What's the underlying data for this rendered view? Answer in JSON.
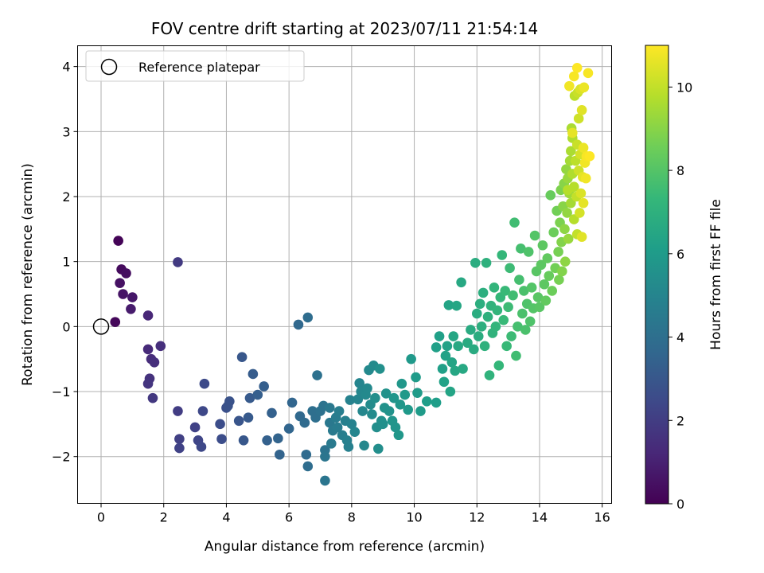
{
  "chart_data": {
    "type": "scatter",
    "title": "FOV centre drift starting at 2023/07/11 21:54:14",
    "xlabel": "Angular distance from reference (arcmin)",
    "ylabel": "Rotation from reference (arcmin)",
    "xlim": [
      -0.75,
      16.3
    ],
    "ylim": [
      -2.72,
      4.32
    ],
    "xticks": [
      0,
      2,
      4,
      6,
      8,
      10,
      12,
      14,
      16
    ],
    "yticks": [
      -2,
      -1,
      0,
      1,
      2,
      3,
      4
    ],
    "grid": true,
    "legend": {
      "placement": "upper-left",
      "entries": [
        "Reference platepar"
      ]
    },
    "reference_point": {
      "x": 0,
      "y": 0
    },
    "colorbar": {
      "label": "Hours from first FF file",
      "range": [
        0,
        11
      ],
      "ticks": [
        0,
        2,
        4,
        6,
        8,
        10
      ],
      "colormap": "viridis",
      "stops": [
        "#440154",
        "#482878",
        "#3e4989",
        "#31688e",
        "#26828e",
        "#1f9e89",
        "#35b779",
        "#6ece58",
        "#b5de2b",
        "#fde725"
      ]
    },
    "series": [
      {
        "points": [
          [
            0.55,
            1.32,
            0.1
          ],
          [
            0.45,
            0.07,
            0.2
          ],
          [
            0.65,
            0.88,
            0.3
          ],
          [
            0.8,
            0.82,
            0.4
          ],
          [
            0.6,
            0.67,
            0.5
          ],
          [
            0.7,
            0.5,
            0.6
          ],
          [
            1.0,
            0.45,
            0.7
          ],
          [
            0.95,
            0.27,
            0.8
          ],
          [
            1.5,
            0.17,
            1.2
          ],
          [
            1.5,
            -0.35,
            1.3
          ],
          [
            1.6,
            -0.5,
            1.4
          ],
          [
            1.7,
            -0.55,
            1.5
          ],
          [
            1.9,
            -0.3,
            1.5
          ],
          [
            1.55,
            -0.8,
            1.6
          ],
          [
            1.5,
            -0.88,
            1.7
          ],
          [
            1.65,
            -1.1,
            1.8
          ],
          [
            2.45,
            0.99,
            1.9
          ],
          [
            2.45,
            -1.3,
            2.0
          ],
          [
            2.5,
            -1.73,
            2.1
          ],
          [
            2.5,
            -1.87,
            2.2
          ],
          [
            3.0,
            -1.55,
            2.2
          ],
          [
            3.1,
            -1.75,
            2.3
          ],
          [
            3.2,
            -1.85,
            2.4
          ],
          [
            3.25,
            -1.3,
            2.4
          ],
          [
            3.3,
            -0.88,
            2.5
          ],
          [
            3.8,
            -1.5,
            2.6
          ],
          [
            3.85,
            -1.73,
            2.6
          ],
          [
            4.0,
            -1.25,
            2.7
          ],
          [
            4.1,
            -1.15,
            2.8
          ],
          [
            4.05,
            -1.22,
            2.8
          ],
          [
            4.4,
            -1.45,
            2.9
          ],
          [
            4.5,
            -0.47,
            3.0
          ],
          [
            4.55,
            -1.75,
            3.0
          ],
          [
            4.7,
            -1.4,
            3.1
          ],
          [
            4.75,
            -1.1,
            3.1
          ],
          [
            4.85,
            -0.73,
            3.2
          ],
          [
            5.0,
            -1.05,
            3.3
          ],
          [
            5.2,
            -0.92,
            3.3
          ],
          [
            5.3,
            -1.75,
            3.4
          ],
          [
            5.45,
            -1.33,
            3.4
          ],
          [
            5.65,
            -1.72,
            3.5
          ],
          [
            5.7,
            -1.97,
            3.5
          ],
          [
            6.0,
            -1.57,
            3.6
          ],
          [
            6.1,
            -1.17,
            3.6
          ],
          [
            6.3,
            0.03,
            3.7
          ],
          [
            6.35,
            -1.38,
            3.7
          ],
          [
            6.5,
            -1.48,
            3.8
          ],
          [
            6.55,
            -1.97,
            3.8
          ],
          [
            6.6,
            -2.15,
            3.9
          ],
          [
            6.6,
            0.14,
            3.9
          ],
          [
            6.75,
            -1.3,
            4.0
          ],
          [
            6.85,
            -1.4,
            4.0
          ],
          [
            6.9,
            -0.75,
            4.1
          ],
          [
            7.0,
            -1.3,
            4.1
          ],
          [
            7.1,
            -1.22,
            4.2
          ],
          [
            7.15,
            -1.9,
            4.2
          ],
          [
            7.15,
            -2.0,
            4.3
          ],
          [
            7.15,
            -2.37,
            4.3
          ],
          [
            7.3,
            -1.48,
            4.4
          ],
          [
            7.3,
            -1.25,
            4.4
          ],
          [
            7.35,
            -1.8,
            4.5
          ],
          [
            7.4,
            -1.6,
            4.5
          ],
          [
            7.5,
            -1.4,
            4.6
          ],
          [
            7.55,
            -1.55,
            4.6
          ],
          [
            7.6,
            -1.3,
            4.7
          ],
          [
            7.7,
            -1.67,
            4.7
          ],
          [
            7.8,
            -1.45,
            4.8
          ],
          [
            7.85,
            -1.75,
            4.8
          ],
          [
            7.9,
            -1.85,
            4.8
          ],
          [
            7.95,
            -1.13,
            4.9
          ],
          [
            8.0,
            -1.5,
            4.9
          ],
          [
            8.1,
            -1.62,
            5.0
          ],
          [
            8.2,
            -1.12,
            5.0
          ],
          [
            8.25,
            -0.87,
            5.0
          ],
          [
            8.3,
            -1.0,
            5.1
          ],
          [
            8.35,
            -1.3,
            5.1
          ],
          [
            8.4,
            -1.83,
            5.1
          ],
          [
            8.45,
            -1.05,
            5.2
          ],
          [
            8.5,
            -0.95,
            5.2
          ],
          [
            8.55,
            -0.67,
            5.2
          ],
          [
            8.6,
            -1.2,
            5.3
          ],
          [
            8.65,
            -1.35,
            5.3
          ],
          [
            8.7,
            -0.6,
            5.3
          ],
          [
            8.75,
            -1.1,
            5.4
          ],
          [
            8.8,
            -1.55,
            5.4
          ],
          [
            8.85,
            -1.88,
            5.4
          ],
          [
            8.9,
            -0.65,
            5.5
          ],
          [
            8.95,
            -1.45,
            5.5
          ],
          [
            9.0,
            -1.5,
            5.5
          ],
          [
            9.05,
            -1.25,
            5.6
          ],
          [
            9.1,
            -1.03,
            5.6
          ],
          [
            9.2,
            -1.3,
            5.6
          ],
          [
            9.3,
            -1.45,
            5.7
          ],
          [
            9.35,
            -1.1,
            5.7
          ],
          [
            9.4,
            -1.55,
            5.7
          ],
          [
            9.5,
            -1.67,
            5.8
          ],
          [
            9.55,
            -1.2,
            5.8
          ],
          [
            9.6,
            -0.88,
            5.8
          ],
          [
            9.7,
            -1.05,
            5.9
          ],
          [
            9.8,
            -1.28,
            5.9
          ],
          [
            9.9,
            -0.5,
            5.9
          ],
          [
            10.05,
            -0.78,
            6.0
          ],
          [
            10.1,
            -1.02,
            6.0
          ],
          [
            10.2,
            -1.3,
            6.0
          ],
          [
            10.4,
            -1.15,
            6.1
          ],
          [
            10.7,
            -1.17,
            6.1
          ],
          [
            10.7,
            -0.32,
            6.2
          ],
          [
            10.8,
            -0.15,
            6.2
          ],
          [
            10.9,
            -0.65,
            6.2
          ],
          [
            10.95,
            -0.85,
            6.3
          ],
          [
            11.0,
            -0.45,
            6.3
          ],
          [
            11.05,
            -0.3,
            6.3
          ],
          [
            11.1,
            0.33,
            6.4
          ],
          [
            11.15,
            -1.0,
            6.4
          ],
          [
            11.2,
            -0.55,
            6.4
          ],
          [
            11.25,
            -0.15,
            6.5
          ],
          [
            11.3,
            -0.68,
            6.5
          ],
          [
            11.35,
            0.32,
            6.5
          ],
          [
            11.4,
            -0.3,
            6.6
          ],
          [
            11.5,
            0.68,
            6.6
          ],
          [
            11.55,
            -0.65,
            6.6
          ],
          [
            11.7,
            -0.25,
            6.7
          ],
          [
            11.8,
            -0.05,
            6.7
          ],
          [
            11.9,
            -0.35,
            6.7
          ],
          [
            11.95,
            0.98,
            6.8
          ],
          [
            12.0,
            0.2,
            6.8
          ],
          [
            12.05,
            -0.15,
            6.8
          ],
          [
            12.1,
            0.35,
            6.9
          ],
          [
            12.15,
            0.0,
            6.9
          ],
          [
            12.2,
            0.52,
            6.9
          ],
          [
            12.25,
            -0.3,
            7.0
          ],
          [
            12.3,
            0.98,
            7.0
          ],
          [
            12.35,
            0.15,
            7.0
          ],
          [
            12.4,
            -0.75,
            7.1
          ],
          [
            12.45,
            0.32,
            7.1
          ],
          [
            12.5,
            -0.1,
            7.1
          ],
          [
            12.55,
            0.6,
            7.2
          ],
          [
            12.6,
            0.0,
            7.2
          ],
          [
            12.65,
            0.25,
            7.2
          ],
          [
            12.7,
            -0.6,
            7.3
          ],
          [
            12.75,
            0.45,
            7.3
          ],
          [
            12.8,
            1.1,
            7.3
          ],
          [
            12.85,
            0.1,
            7.4
          ],
          [
            12.9,
            0.55,
            7.4
          ],
          [
            12.95,
            -0.3,
            7.4
          ],
          [
            13.0,
            0.3,
            7.5
          ],
          [
            13.05,
            0.9,
            7.5
          ],
          [
            13.1,
            -0.15,
            7.5
          ],
          [
            13.15,
            0.48,
            7.6
          ],
          [
            13.2,
            1.6,
            7.6
          ],
          [
            13.25,
            -0.45,
            7.6
          ],
          [
            13.3,
            0.0,
            7.7
          ],
          [
            13.35,
            0.72,
            7.7
          ],
          [
            13.4,
            1.2,
            7.7
          ],
          [
            13.45,
            0.2,
            7.8
          ],
          [
            13.5,
            0.55,
            7.8
          ],
          [
            13.55,
            -0.05,
            7.8
          ],
          [
            13.6,
            0.35,
            7.9
          ],
          [
            13.65,
            1.15,
            7.9
          ],
          [
            13.7,
            0.08,
            7.9
          ],
          [
            13.75,
            0.6,
            8.0
          ],
          [
            13.8,
            0.28,
            8.0
          ],
          [
            13.85,
            1.4,
            8.0
          ],
          [
            13.9,
            0.85,
            8.1
          ],
          [
            13.95,
            0.45,
            8.1
          ],
          [
            14.0,
            0.3,
            8.1
          ],
          [
            14.05,
            0.95,
            8.2
          ],
          [
            14.1,
            1.25,
            8.2
          ],
          [
            14.15,
            0.65,
            8.2
          ],
          [
            14.2,
            0.4,
            8.3
          ],
          [
            14.25,
            1.05,
            8.3
          ],
          [
            14.3,
            0.78,
            8.4
          ],
          [
            14.35,
            2.02,
            8.4
          ],
          [
            14.4,
            0.55,
            8.5
          ],
          [
            14.45,
            1.45,
            8.5
          ],
          [
            14.5,
            0.9,
            8.6
          ],
          [
            14.55,
            1.78,
            8.6
          ],
          [
            14.6,
            1.15,
            8.7
          ],
          [
            14.62,
            0.72,
            8.7
          ],
          [
            14.65,
            1.6,
            8.8
          ],
          [
            14.68,
            2.1,
            8.8
          ],
          [
            14.7,
            1.3,
            8.9
          ],
          [
            14.72,
            0.85,
            8.9
          ],
          [
            14.75,
            1.85,
            9.0
          ],
          [
            14.78,
            2.2,
            9.0
          ],
          [
            14.8,
            1.5,
            9.1
          ],
          [
            14.82,
            1.0,
            9.1
          ],
          [
            14.85,
            2.42,
            9.2
          ],
          [
            14.88,
            1.75,
            9.2
          ],
          [
            14.9,
            2.28,
            9.3
          ],
          [
            14.92,
            1.35,
            9.3
          ],
          [
            14.95,
            2.05,
            9.4
          ],
          [
            14.97,
            2.55,
            9.5
          ],
          [
            15.0,
            1.9,
            9.5
          ],
          [
            15.0,
            2.7,
            9.6
          ],
          [
            15.02,
            3.05,
            9.6
          ],
          [
            15.05,
            2.35,
            9.7
          ],
          [
            15.05,
            2.9,
            9.7
          ],
          [
            15.1,
            1.65,
            9.8
          ],
          [
            15.1,
            2.15,
            9.8
          ],
          [
            15.12,
            3.55,
            9.9
          ],
          [
            15.15,
            2.55,
            9.9
          ],
          [
            15.18,
            2.0,
            10.0
          ],
          [
            15.2,
            1.42,
            10.0
          ],
          [
            15.2,
            2.8,
            10.1
          ],
          [
            15.22,
            3.6,
            10.1
          ],
          [
            15.25,
            2.4,
            10.2
          ],
          [
            15.25,
            3.2,
            10.2
          ],
          [
            15.28,
            1.75,
            10.3
          ],
          [
            15.3,
            2.65,
            10.3
          ],
          [
            15.3,
            3.65,
            10.4
          ],
          [
            15.32,
            2.05,
            10.4
          ],
          [
            15.35,
            1.38,
            10.5
          ],
          [
            15.35,
            3.33,
            10.5
          ],
          [
            15.38,
            2.3,
            10.6
          ],
          [
            15.4,
            1.9,
            10.6
          ],
          [
            15.4,
            2.75,
            10.7
          ],
          [
            15.42,
            3.68,
            10.7
          ],
          [
            15.45,
            2.52,
            10.8
          ],
          [
            15.48,
            2.28,
            10.8
          ],
          [
            15.5,
            2.62,
            10.9
          ],
          [
            15.55,
            3.9,
            10.9
          ],
          [
            15.6,
            2.62,
            11.0
          ],
          [
            15.2,
            3.98,
            11.0
          ],
          [
            15.1,
            3.85,
            10.9
          ],
          [
            14.95,
            3.7,
            10.8
          ],
          [
            15.05,
            2.98,
            10.6
          ],
          [
            14.9,
            2.1,
            9.8
          ]
        ]
      }
    ]
  }
}
